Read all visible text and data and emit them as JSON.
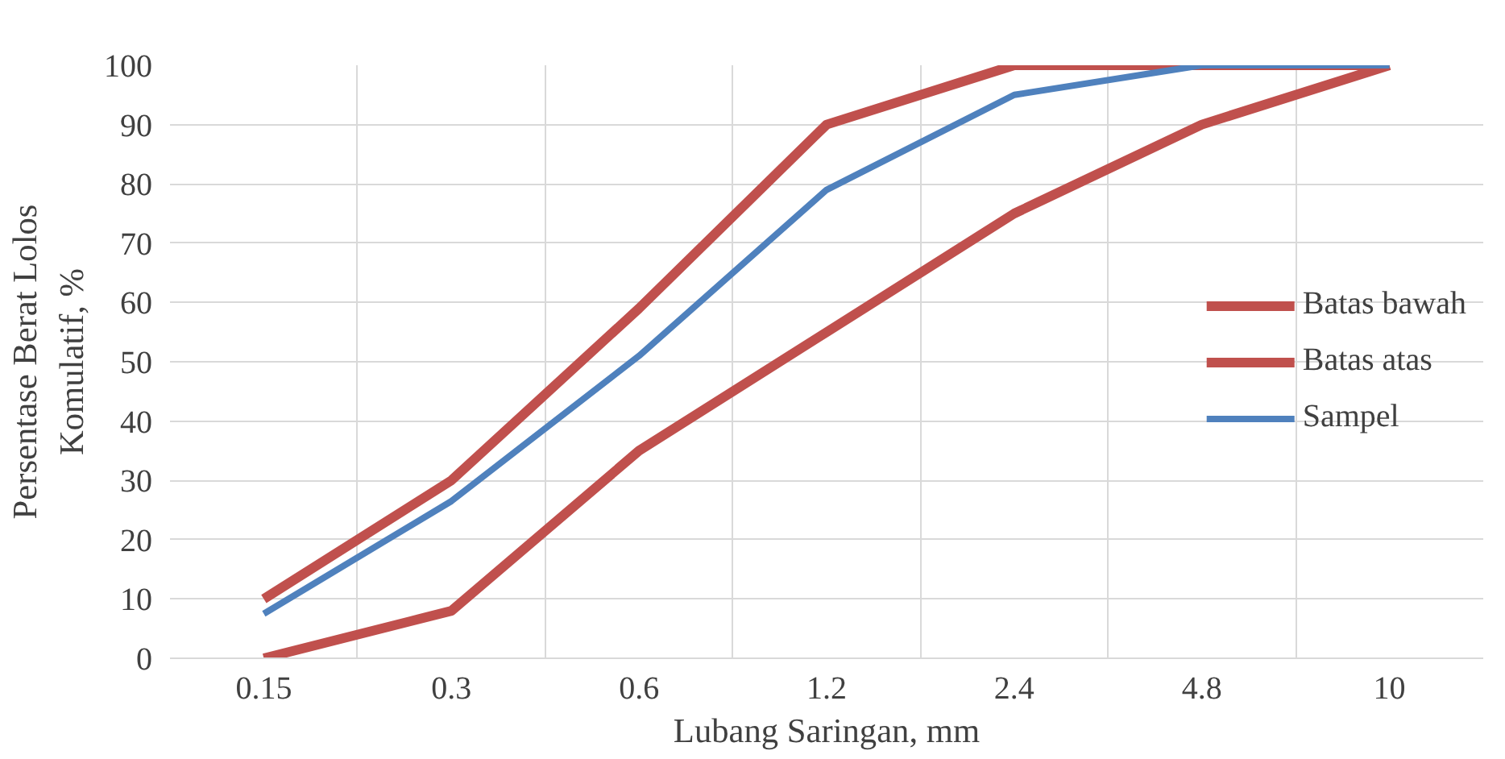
{
  "chart_data": {
    "type": "line",
    "xlabel": "Lubang Saringan, mm",
    "ylabel": "Persentase Berat Lolos\nKomulatif, %",
    "categories": [
      "0.15",
      "0.3",
      "0.6",
      "1.2",
      "2.4",
      "4.8",
      "10"
    ],
    "ylim": [
      0,
      100
    ],
    "yticks": [
      0,
      10,
      20,
      30,
      40,
      50,
      60,
      70,
      80,
      90,
      100
    ],
    "grid": true,
    "legend": "right",
    "line_style": "solid",
    "series": [
      {
        "name": "Batas bawah",
        "color": "#c0504d",
        "values": [
          0,
          8,
          35,
          55,
          75,
          90,
          100
        ]
      },
      {
        "name": "Batas atas",
        "color": "#c0504d",
        "values": [
          10,
          30,
          59,
          90,
          100,
          100,
          100
        ]
      },
      {
        "name": "Sampel",
        "color": "#4f81bd",
        "values": [
          7.5,
          26.5,
          51,
          79,
          95,
          100,
          100
        ]
      }
    ]
  }
}
